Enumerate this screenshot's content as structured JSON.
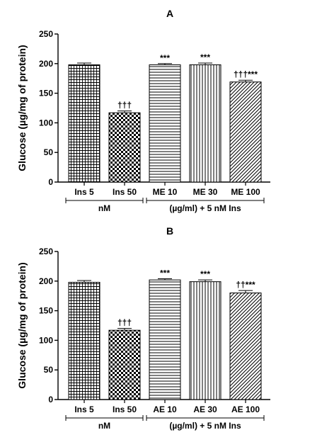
{
  "chart_data": [
    {
      "type": "bar",
      "title": "A",
      "xlabel": "",
      "ylabel": "Glucose (µg/mg of protein)",
      "ylim": [
        0,
        250
      ],
      "yticks": [
        0,
        50,
        100,
        150,
        200,
        250
      ],
      "grid": false,
      "categories": [
        "Ins 5",
        "Ins 50",
        "ME 10",
        "ME 30",
        "ME 100"
      ],
      "values": [
        198,
        117,
        198,
        198,
        169
      ],
      "errors": [
        3,
        3,
        2,
        3,
        3
      ],
      "annotations": [
        "",
        "†††",
        "***",
        "***",
        "†††***"
      ],
      "patterns": [
        "grid-fine",
        "checker",
        "horizontal",
        "vertical",
        "diagonal"
      ],
      "groups": [
        {
          "label": "nM",
          "span": [
            0,
            1
          ]
        },
        {
          "label": "(µg/ml) + 5 nM Ins",
          "span": [
            2,
            4
          ]
        }
      ]
    },
    {
      "type": "bar",
      "title": "B",
      "xlabel": "",
      "ylabel": "Glucose (µg/mg of protein)",
      "ylim": [
        0,
        250
      ],
      "yticks": [
        0,
        50,
        100,
        150,
        200,
        250
      ],
      "grid": false,
      "categories": [
        "Ins 5",
        "Ins 50",
        "AE 10",
        "AE 30",
        "AE 100"
      ],
      "values": [
        198,
        117,
        202,
        199,
        180
      ],
      "errors": [
        3,
        3,
        2,
        3,
        4
      ],
      "annotations": [
        "",
        "†††",
        "***",
        "***",
        "††***"
      ],
      "patterns": [
        "grid-fine",
        "checker",
        "horizontal",
        "vertical",
        "diagonal"
      ],
      "groups": [
        {
          "label": "nM",
          "span": [
            0,
            1
          ]
        },
        {
          "label": "(µg/ml) + 5 nM Ins",
          "span": [
            2,
            4
          ]
        }
      ]
    }
  ]
}
